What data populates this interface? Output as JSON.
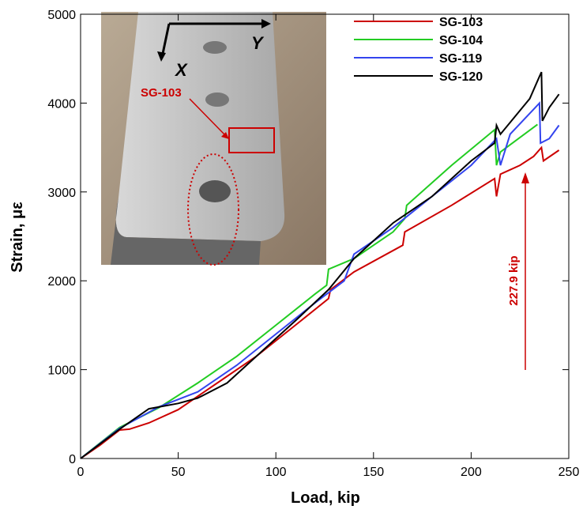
{
  "chart_data": {
    "type": "line",
    "xlabel": "Load, kip",
    "ylabel": "Strain, με",
    "xlim": [
      0,
      250
    ],
    "ylim": [
      0,
      5000
    ],
    "xticks": [
      0,
      50,
      100,
      150,
      200,
      250
    ],
    "yticks": [
      0,
      1000,
      2000,
      3000,
      4000,
      5000
    ],
    "legend": "upper right",
    "annotation": "227.9 kip",
    "inset_labels": {
      "x_axis": "X",
      "y_axis": "Y",
      "gauge": "SG-103"
    },
    "series": [
      {
        "name": "SG-103",
        "color": "#cc0000",
        "x": [
          0,
          10,
          20,
          25,
          35,
          50,
          70,
          90,
          110,
          127,
          128,
          140,
          165,
          166,
          190,
          212,
          213,
          215,
          225,
          232,
          236,
          237,
          245
        ],
        "values": [
          0,
          150,
          320,
          330,
          400,
          550,
          850,
          1150,
          1500,
          1800,
          1900,
          2100,
          2400,
          2550,
          2850,
          3150,
          2950,
          3200,
          3300,
          3400,
          3500,
          3350,
          3470
        ]
      },
      {
        "name": "SG-104",
        "color": "#22cc22",
        "x": [
          0,
          20,
          40,
          60,
          80,
          100,
          120,
          126,
          127,
          140,
          160,
          166,
          167,
          190,
          212,
          213,
          215,
          234
        ],
        "values": [
          0,
          350,
          570,
          850,
          1150,
          1500,
          1850,
          1950,
          2130,
          2250,
          2550,
          2700,
          2850,
          3300,
          3700,
          3300,
          3450,
          3760
        ]
      },
      {
        "name": "SG-119",
        "color": "#3344ee",
        "x": [
          0,
          20,
          40,
          60,
          80,
          100,
          120,
          135,
          140,
          160,
          180,
          200,
          213,
          215,
          220,
          235,
          235.5,
          240,
          245
        ],
        "values": [
          0,
          340,
          580,
          750,
          1050,
          1400,
          1750,
          2000,
          2300,
          2600,
          2950,
          3300,
          3600,
          3300,
          3650,
          4000,
          3550,
          3600,
          3750
        ]
      },
      {
        "name": "SG-120",
        "color": "#000000",
        "x": [
          0,
          20,
          35,
          50,
          60,
          75,
          90,
          110,
          127,
          140,
          160,
          180,
          200,
          212,
          213,
          215,
          230,
          235,
          236,
          236.5,
          240,
          245
        ],
        "values": [
          0,
          330,
          560,
          620,
          680,
          850,
          1150,
          1550,
          1900,
          2250,
          2650,
          2950,
          3350,
          3550,
          3750,
          3650,
          4050,
          4300,
          4350,
          3800,
          3950,
          4100
        ]
      }
    ]
  }
}
